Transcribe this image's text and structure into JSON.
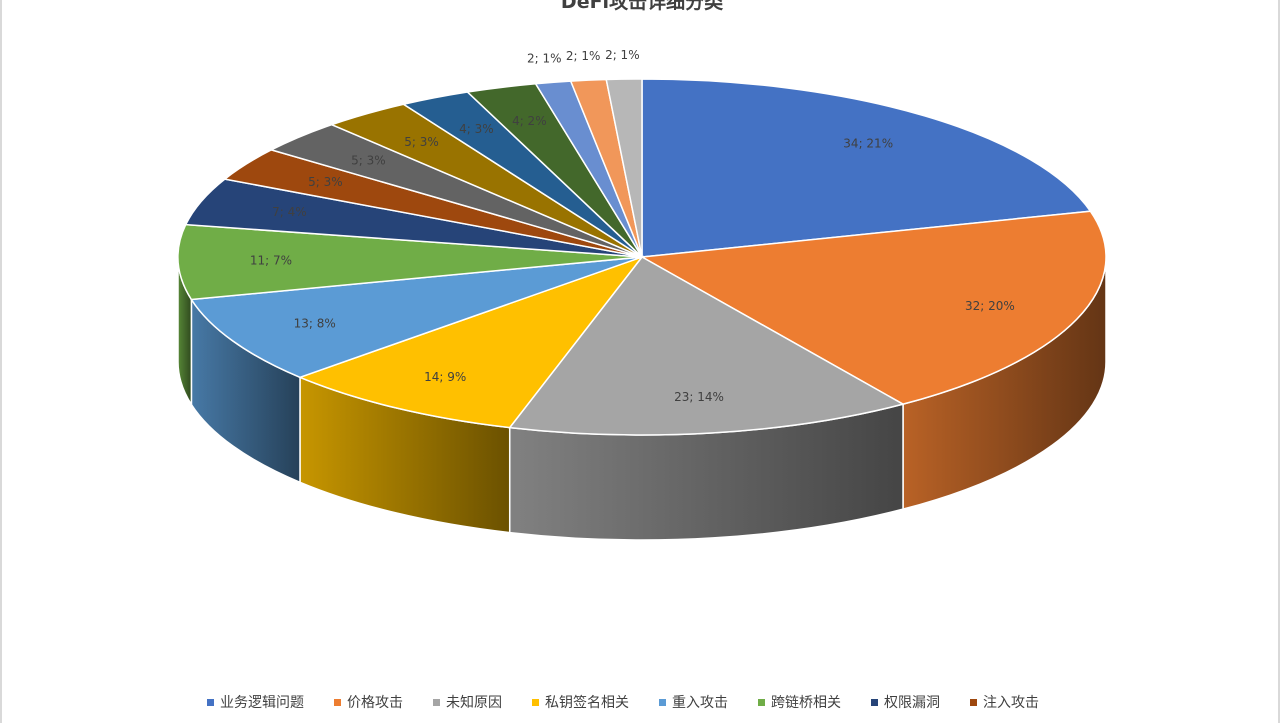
{
  "chart_data": {
    "type": "pie",
    "title": "DeFi攻击详细分类",
    "style": "3d",
    "legend_position": "bottom",
    "slices": [
      {
        "name": "业务逻辑问题",
        "value": 34,
        "percent": "21%",
        "color": "#4472C4"
      },
      {
        "name": "价格攻击",
        "value": 32,
        "percent": "20%",
        "color": "#ED7D31"
      },
      {
        "name": "未知原因",
        "value": 23,
        "percent": "14%",
        "color": "#A5A5A5"
      },
      {
        "name": "私钥签名相关",
        "value": 14,
        "percent": "9%",
        "color": "#FFC000"
      },
      {
        "name": "重入攻击",
        "value": 13,
        "percent": "8%",
        "color": "#5B9BD5"
      },
      {
        "name": "跨链桥相关",
        "value": 11,
        "percent": "7%",
        "color": "#70AD47"
      },
      {
        "name": "权限漏洞",
        "value": 7,
        "percent": "4%",
        "color": "#264478"
      },
      {
        "name": "注入攻击",
        "value": 5,
        "percent": "3%",
        "color": "#9E480E"
      },
      {
        "name": "",
        "value": 5,
        "percent": "3%",
        "color": "#636363"
      },
      {
        "name": "",
        "value": 5,
        "percent": "3%",
        "color": "#997300"
      },
      {
        "name": "",
        "value": 4,
        "percent": "3%",
        "color": "#255E91"
      },
      {
        "name": "",
        "value": 4,
        "percent": "2%",
        "color": "#43682B"
      },
      {
        "name": "",
        "value": 2,
        "percent": "1%",
        "color": "#698ED0"
      },
      {
        "name": "",
        "value": 2,
        "percent": "1%",
        "color": "#F1975A"
      },
      {
        "name": "",
        "value": 2,
        "percent": "1%",
        "color": "#B7B7B7"
      }
    ]
  }
}
